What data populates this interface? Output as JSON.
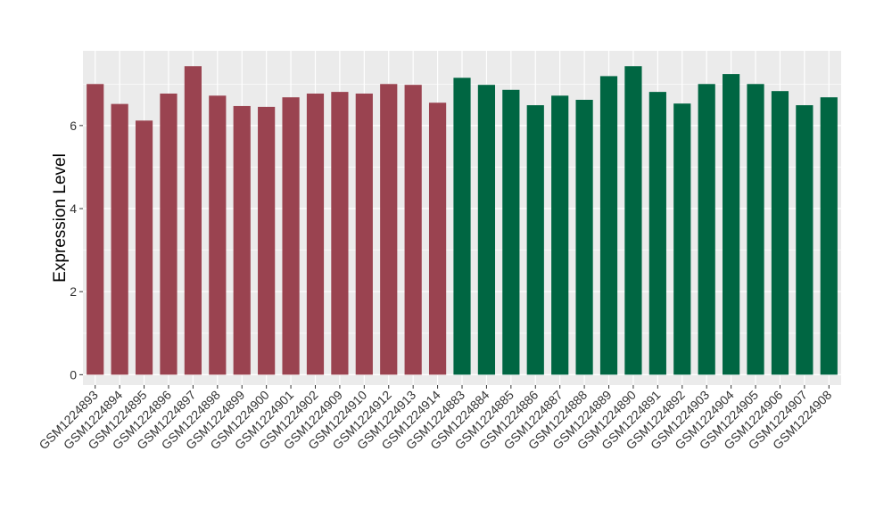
{
  "chart_data": {
    "type": "bar",
    "title": "",
    "xlabel": "",
    "ylabel": "Expression Level",
    "ylim": [
      -0.25,
      7.8
    ],
    "yticks": [
      0,
      2,
      4,
      6
    ],
    "grid": true,
    "legend": "none",
    "panel_background": "#EBEBEB",
    "grid_color": "#FFFFFF",
    "categories": [
      "GSM1224893",
      "GSM1224894",
      "GSM1224895",
      "GSM1224896",
      "GSM1224897",
      "GSM1224898",
      "GSM1224899",
      "GSM1224900",
      "GSM1224901",
      "GSM1224902",
      "GSM1224909",
      "GSM1224910",
      "GSM1224912",
      "GSM1224913",
      "GSM1224914",
      "GSM1224883",
      "GSM1224884",
      "GSM1224885",
      "GSM1224886",
      "GSM1224887",
      "GSM1224888",
      "GSM1224889",
      "GSM1224890",
      "GSM1224891",
      "GSM1224892",
      "GSM1224903",
      "GSM1224904",
      "GSM1224905",
      "GSM1224906",
      "GSM1224907",
      "GSM1224908"
    ],
    "values": [
      7.0,
      6.52,
      6.12,
      6.77,
      7.43,
      6.72,
      6.47,
      6.45,
      6.68,
      6.77,
      6.81,
      6.77,
      7.0,
      6.98,
      6.55,
      7.15,
      6.98,
      6.86,
      6.49,
      6.72,
      6.62,
      7.19,
      7.43,
      6.81,
      6.53,
      7.0,
      7.24,
      7.0,
      6.83,
      6.49,
      6.68
    ],
    "bar_colors": [
      "#9A4350",
      "#9A4350",
      "#9A4350",
      "#9A4350",
      "#9A4350",
      "#9A4350",
      "#9A4350",
      "#9A4350",
      "#9A4350",
      "#9A4350",
      "#9A4350",
      "#9A4350",
      "#9A4350",
      "#9A4350",
      "#9A4350",
      "#006642",
      "#006642",
      "#006642",
      "#006642",
      "#006642",
      "#006642",
      "#006642",
      "#006642",
      "#006642",
      "#006642",
      "#006642",
      "#006642",
      "#006642",
      "#006642",
      "#006642",
      "#006642"
    ]
  }
}
